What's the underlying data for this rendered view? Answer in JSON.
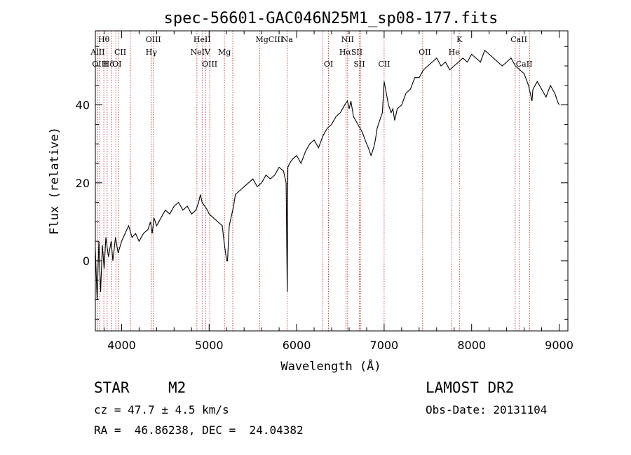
{
  "chart_data": {
    "type": "line",
    "title": "spec-56601-GAC046N25M1_sp08-177.fits",
    "xlabel": "Wavelength (Å)",
    "ylabel": "Flux (relative)",
    "xlim": [
      3700,
      9100
    ],
    "ylim": [
      -18,
      59
    ],
    "xticks": [
      4000,
      5000,
      6000,
      7000,
      8000,
      9000
    ],
    "yticks": [
      0,
      20,
      40
    ],
    "grid": false,
    "legend": "none",
    "series": [
      {
        "values_description": "spectrum",
        "x": [
          3700,
          3720,
          3740,
          3760,
          3780,
          3800,
          3820,
          3850,
          3880,
          3900,
          3930,
          3960,
          4000,
          4040,
          4080,
          4120,
          4160,
          4200,
          4250,
          4300,
          4330,
          4350,
          4370,
          4400,
          4450,
          4500,
          4550,
          4600,
          4650,
          4700,
          4750,
          4800,
          4850,
          4880,
          4900,
          4920,
          4950,
          4980,
          5000,
          5050,
          5100,
          5150,
          5170,
          5200,
          5210,
          5230,
          5260,
          5280,
          5300,
          5350,
          5400,
          5450,
          5500,
          5550,
          5600,
          5650,
          5700,
          5750,
          5800,
          5850,
          5880,
          5893,
          5896,
          5900,
          5920,
          5950,
          6000,
          6050,
          6100,
          6150,
          6200,
          6250,
          6300,
          6350,
          6400,
          6450,
          6500,
          6550,
          6580,
          6600,
          6620,
          6650,
          6700,
          6750,
          6800,
          6820,
          6850,
          6880,
          6900,
          6920,
          6950,
          6980,
          7000,
          7050,
          7080,
          7100,
          7120,
          7150,
          7200,
          7250,
          7300,
          7350,
          7400,
          7450,
          7500,
          7550,
          7600,
          7650,
          7700,
          7750,
          7800,
          7850,
          7900,
          7950,
          8000,
          8050,
          8100,
          8150,
          8200,
          8250,
          8300,
          8350,
          8400,
          8450,
          8500,
          8550,
          8600,
          8650,
          8690,
          8700,
          8750,
          8800,
          8850,
          8900,
          8950,
          8980,
          9000
        ],
        "y": [
          3,
          -10,
          5,
          -8,
          4,
          -2,
          6,
          1,
          5,
          0,
          6,
          2,
          5,
          7,
          9,
          6,
          7,
          5,
          7,
          8,
          10,
          7,
          11,
          9,
          11,
          13,
          12,
          14,
          15,
          13,
          14,
          12,
          13,
          15,
          17,
          15,
          14,
          13,
          12,
          11,
          10,
          9,
          5,
          0,
          0,
          9,
          12,
          14,
          17,
          18,
          19,
          20,
          21,
          19,
          20,
          22,
          21,
          22,
          24,
          23,
          20,
          -8,
          5,
          24,
          25,
          26,
          27,
          25,
          28,
          30,
          31,
          29,
          32,
          34,
          35,
          37,
          38,
          40,
          41,
          39,
          41,
          37,
          35,
          33,
          30,
          29,
          27,
          29,
          31,
          34,
          36,
          38,
          46,
          40,
          38,
          39,
          36,
          39,
          40,
          43,
          44,
          47,
          47,
          49,
          50,
          51,
          52,
          50,
          51,
          49,
          50,
          51,
          52,
          51,
          53,
          52,
          51,
          54,
          53,
          52,
          51,
          50,
          51,
          52,
          50,
          49,
          48,
          45,
          41,
          44,
          46,
          44,
          42,
          45,
          43,
          41,
          40
        ]
      }
    ],
    "spectral_lines": [
      {
        "label": "Hθ",
        "wavelength": 3797,
        "row": 0
      },
      {
        "label": "AlII",
        "wavelength": 3727,
        "row": 1
      },
      {
        "label": "CII",
        "wavelength": 3985,
        "row": 1
      },
      {
        "label": "OIII",
        "wavelength": 4363,
        "row": 0
      },
      {
        "label": "Hγ",
        "wavelength": 4340,
        "row": 1
      },
      {
        "label": "OIII",
        "wavelength": 3750,
        "row": 2
      },
      {
        "label": "Hδ",
        "wavelength": 3850,
        "row": 2
      },
      {
        "label": "OI",
        "wavelength": 3947,
        "row": 2
      },
      {
        "label": "HeII",
        "wavelength": 4920,
        "row": 0
      },
      {
        "label": "NeIV",
        "wavelength": 4900,
        "row": 1
      },
      {
        "label": "OIII",
        "wavelength": 5007,
        "row": 2
      },
      {
        "label": "Mg",
        "wavelength": 5175,
        "row": 1
      },
      {
        "label": "MgCIII",
        "wavelength": 5690,
        "row": 0
      },
      {
        "label": "Na",
        "wavelength": 5893,
        "row": 0
      },
      {
        "label": "NII",
        "wavelength": 6583,
        "row": 0
      },
      {
        "label": "HαSII",
        "wavelength": 6620,
        "row": 1
      },
      {
        "label": "OI",
        "wavelength": 6364,
        "row": 2
      },
      {
        "label": "SII",
        "wavelength": 6716,
        "row": 2
      },
      {
        "label": "CII",
        "wavelength": 7000,
        "row": 2
      },
      {
        "label": "OII",
        "wavelength": 7465,
        "row": 1
      },
      {
        "label": "He",
        "wavelength": 7800,
        "row": 1
      },
      {
        "label": "K",
        "wavelength": 7860,
        "row": 0
      },
      {
        "label": "CaII",
        "wavelength": 8540,
        "row": 0
      },
      {
        "label": "CaII",
        "wavelength": 8600,
        "row": 2
      }
    ],
    "marker_lines": [
      3727,
      3750,
      3797,
      3835,
      3889,
      3934,
      3969,
      4101,
      4340,
      4363,
      4861,
      4920,
      4959,
      5007,
      5175,
      5270,
      5577,
      5892,
      6300,
      6364,
      6563,
      6583,
      6716,
      6731,
      7000,
      7440,
      7771,
      7860,
      8498,
      8542,
      8662
    ]
  },
  "info": {
    "class": "STAR",
    "subclass": "M2",
    "cz": "cz = 47.7 ± 4.5 km/s",
    "survey": "LAMOST DR2",
    "obsdate": "Obs-Date: 20131104",
    "radec": "RA =  46.86238, DEC =  24.04382"
  }
}
